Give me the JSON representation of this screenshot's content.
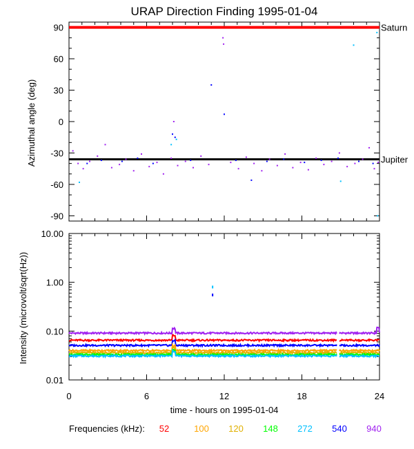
{
  "chart_data": [
    {
      "type": "scatter",
      "title": "URAP Direction Finding  1995-01-04",
      "ylabel": "Azimuthal angle (deg)",
      "xlim": [
        0,
        24
      ],
      "ylim": [
        -95,
        95
      ],
      "yticks": [
        90,
        60,
        30,
        0,
        -30,
        -60,
        -90
      ],
      "reference_lines": [
        {
          "label": "Saturn",
          "value": 90,
          "color": "#ff0000"
        },
        {
          "label": "Jupiter",
          "value": -36,
          "color": "#000000"
        }
      ],
      "series": [
        {
          "freq": "940",
          "points": [
            [
              0.3,
              -28
            ],
            [
              0.7,
              -40
            ],
            [
              1.1,
              -45
            ],
            [
              1.6,
              -38
            ],
            [
              2.2,
              -33
            ],
            [
              2.8,
              -22
            ],
            [
              3.3,
              -44
            ],
            [
              3.9,
              -41
            ],
            [
              4.4,
              -36
            ],
            [
              5.0,
              -47
            ],
            [
              5.6,
              -31
            ],
            [
              6.2,
              -43
            ],
            [
              6.8,
              -39
            ],
            [
              7.3,
              -50
            ],
            [
              7.9,
              -35
            ],
            [
              8.1,
              0
            ],
            [
              8.4,
              -42
            ],
            [
              9.0,
              -38
            ],
            [
              9.6,
              -44
            ],
            [
              10.2,
              -33
            ],
            [
              10.8,
              -41
            ],
            [
              11.9,
              80
            ],
            [
              11.95,
              74
            ],
            [
              12.5,
              -39
            ],
            [
              13.1,
              -45
            ],
            [
              13.7,
              -34
            ],
            [
              14.3,
              -40
            ],
            [
              14.9,
              -47
            ],
            [
              15.5,
              -36
            ],
            [
              16.1,
              -42
            ],
            [
              16.7,
              -31
            ],
            [
              17.3,
              -44
            ],
            [
              17.9,
              -39
            ],
            [
              18.5,
              -46
            ],
            [
              19.1,
              -35
            ],
            [
              19.7,
              -41
            ],
            [
              20.3,
              -38
            ],
            [
              20.9,
              -30
            ],
            [
              21.5,
              -43
            ],
            [
              22.1,
              -40
            ],
            [
              22.7,
              -36
            ],
            [
              23.2,
              -25
            ],
            [
              23.6,
              -45
            ],
            [
              23.9,
              -39
            ]
          ]
        },
        {
          "freq": "540",
          "points": [
            [
              1.4,
              -40
            ],
            [
              2.5,
              -37
            ],
            [
              4.1,
              -38
            ],
            [
              5.3,
              -35
            ],
            [
              6.5,
              -40
            ],
            [
              8.0,
              -12
            ],
            [
              8.2,
              -15
            ],
            [
              9.4,
              -37
            ],
            [
              11.0,
              35
            ],
            [
              12.0,
              7
            ],
            [
              12.9,
              -37
            ],
            [
              14.1,
              -56
            ],
            [
              15.3,
              -38
            ],
            [
              16.6,
              -36
            ],
            [
              18.2,
              -39
            ],
            [
              19.5,
              -37
            ],
            [
              20.8,
              -35
            ],
            [
              22.4,
              -38
            ],
            [
              23.5,
              -40
            ]
          ]
        },
        {
          "freq": "272",
          "points": [
            [
              0.8,
              -58
            ],
            [
              7.9,
              -22
            ],
            [
              8.3,
              -17
            ],
            [
              21.0,
              -57
            ],
            [
              22.0,
              73
            ],
            [
              23.8,
              85
            ],
            [
              23.85,
              -90
            ]
          ]
        }
      ]
    },
    {
      "type": "line",
      "xlabel": "time - hours on 1995-01-04",
      "ylabel": "Intensity (microvolt/sqrt(Hz))",
      "xlim": [
        0,
        24
      ],
      "ylim": [
        0.01,
        10
      ],
      "yscale": "log",
      "xticks": [
        "0",
        "6",
        "12",
        "18",
        "24"
      ],
      "ytick_labels": [
        "10.00",
        "1.00",
        "0.10",
        "0.01"
      ],
      "spike": {
        "x": 11.1,
        "values": [
          0.8,
          0.55
        ]
      },
      "series": [
        {
          "freq": "940",
          "base": 0.091,
          "color": "#a020f0"
        },
        {
          "freq": "52",
          "base": 0.065,
          "color": "#ff0000"
        },
        {
          "freq": "540",
          "base": 0.051,
          "color": "#0000ff"
        },
        {
          "freq": "100",
          "base": 0.04,
          "color": "#ffa500"
        },
        {
          "freq": "120",
          "base": 0.036,
          "color": "#e0b000"
        },
        {
          "freq": "148",
          "base": 0.033,
          "color": "#00ff00"
        },
        {
          "freq": "272",
          "base": 0.031,
          "color": "#00c0ff"
        }
      ]
    }
  ],
  "legend": {
    "label": "Frequencies (kHz):",
    "items": [
      {
        "value": "52",
        "color": "#ff0000"
      },
      {
        "value": "100",
        "color": "#ffa500"
      },
      {
        "value": "120",
        "color": "#e0b000"
      },
      {
        "value": "148",
        "color": "#00ff00"
      },
      {
        "value": "272",
        "color": "#00c0ff"
      },
      {
        "value": "540",
        "color": "#0000ff"
      },
      {
        "value": "940",
        "color": "#a020f0"
      }
    ]
  }
}
